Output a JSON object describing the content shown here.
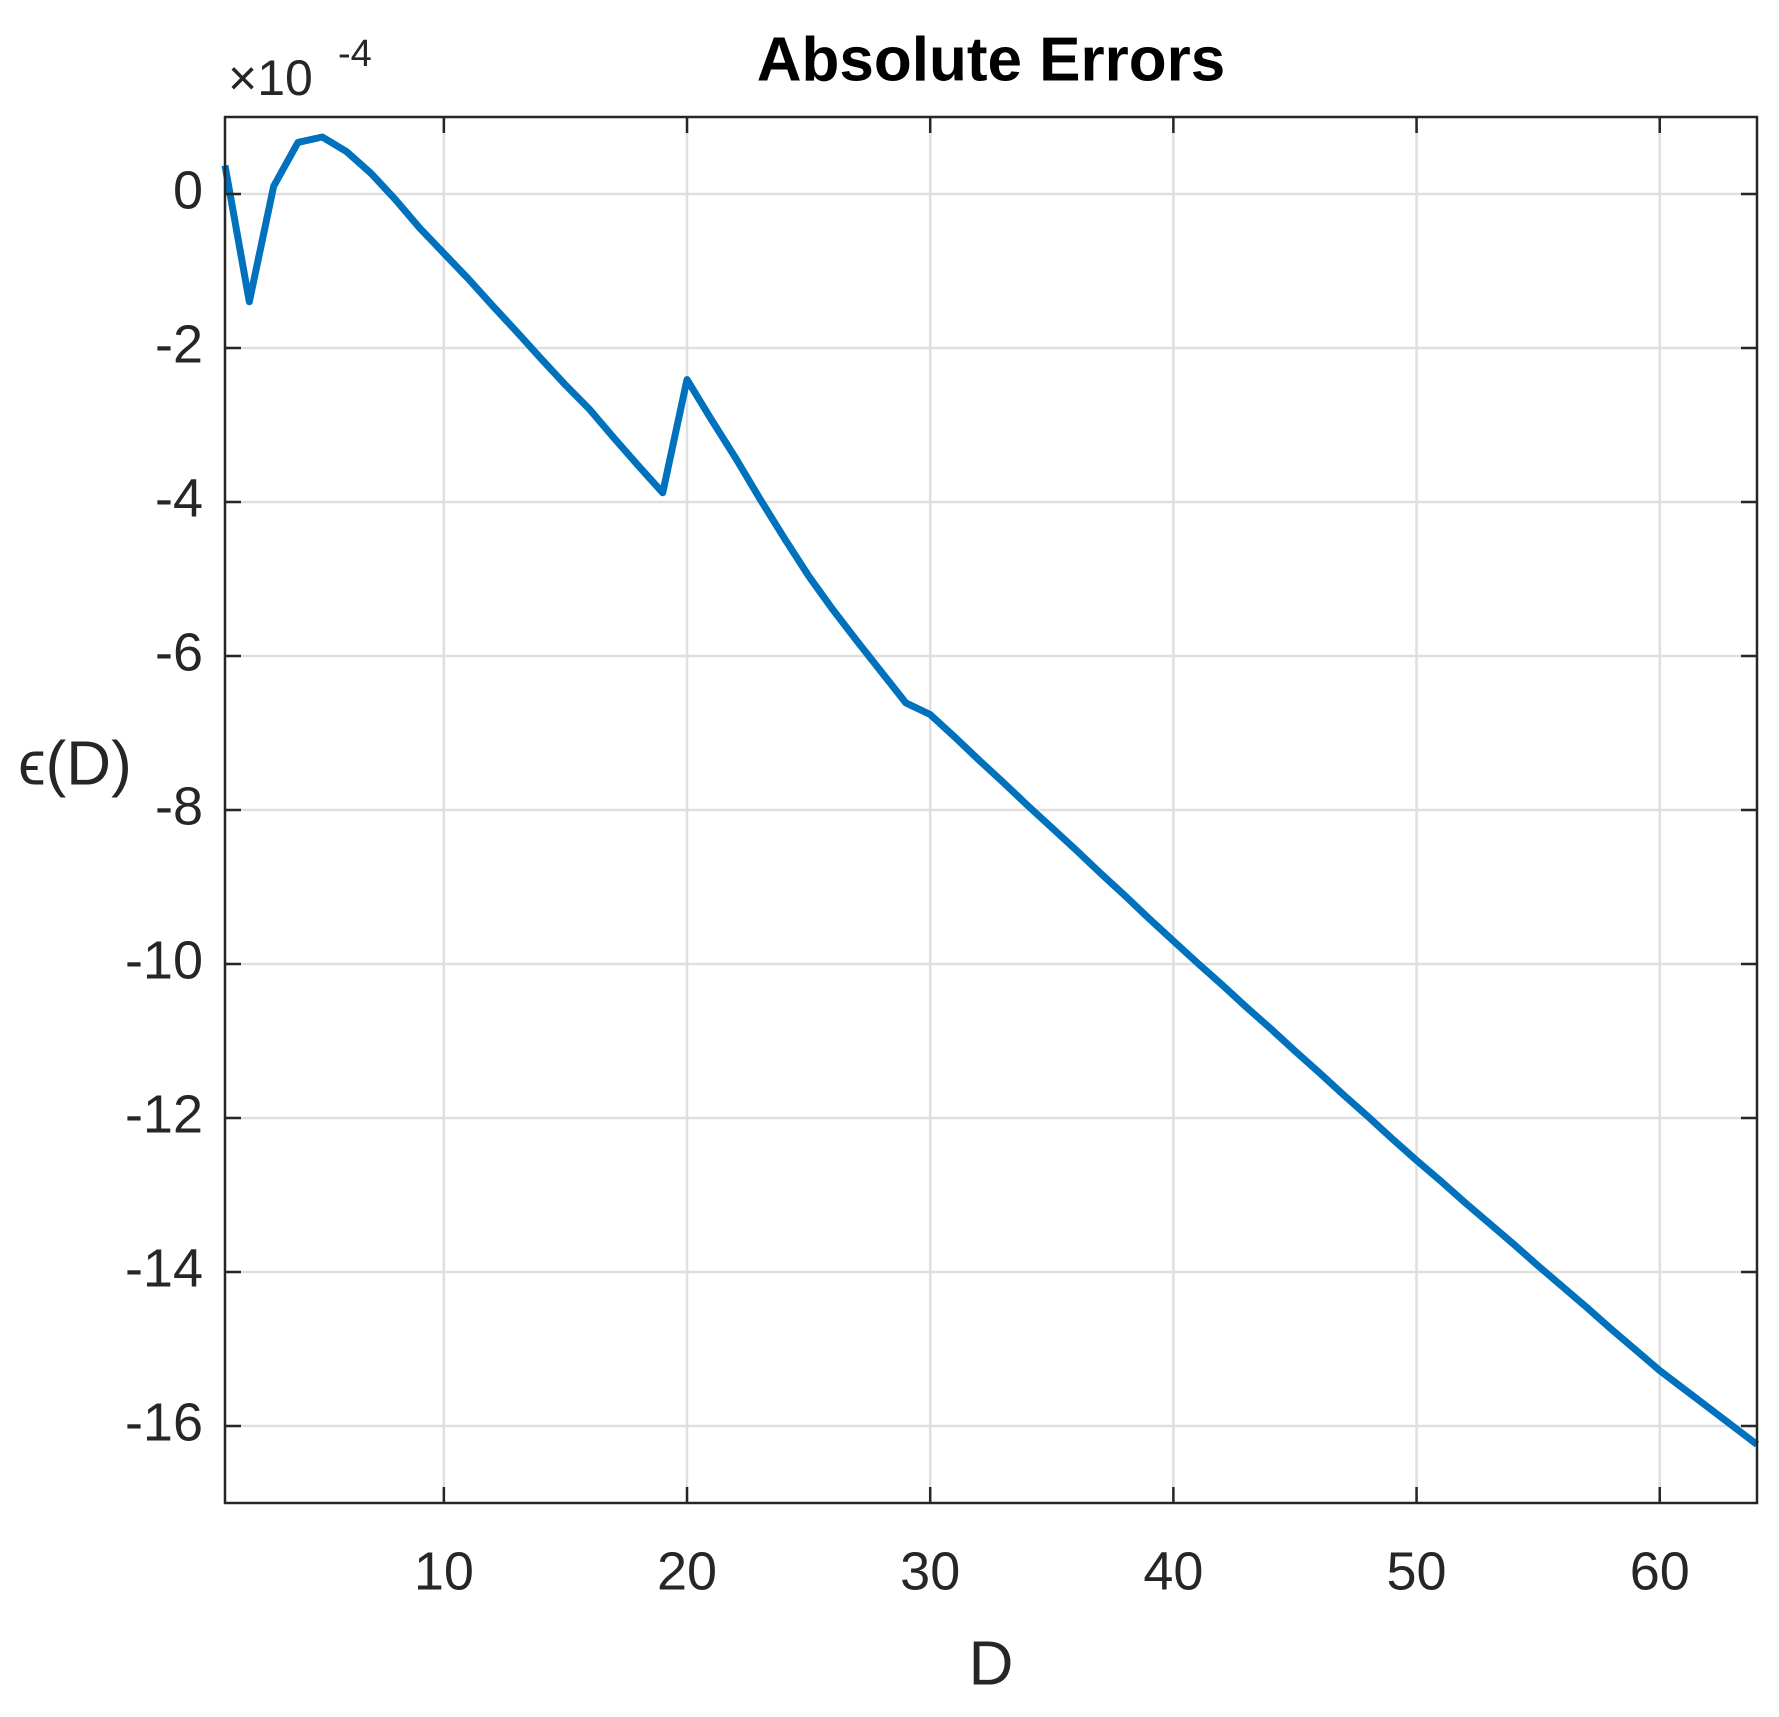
{
  "chart_data": {
    "type": "line",
    "title": "Absolute Errors",
    "x_label": "D",
    "y_label": "ϵ(D)",
    "y_multiplier": "×10",
    "y_exponent": "-4",
    "x": [
      1,
      2,
      3,
      4,
      5,
      6,
      7,
      8,
      9,
      10,
      11,
      12,
      13,
      14,
      15,
      16,
      17,
      18,
      19,
      20,
      21,
      22,
      23,
      24,
      25,
      26,
      27,
      28,
      29,
      30,
      31,
      32,
      33,
      34,
      35,
      36,
      37,
      38,
      39,
      40,
      41,
      42,
      43,
      44,
      45,
      46,
      47,
      48,
      49,
      50,
      51,
      52,
      53,
      54,
      55,
      56,
      57,
      58,
      59,
      60,
      61,
      62,
      63,
      64
    ],
    "series": [
      {
        "name": "ϵ(D)",
        "color": "#0072bd",
        "values": [
          0.37,
          -1.4,
          0.1,
          0.67,
          0.74,
          0.55,
          0.27,
          -0.07,
          -0.44,
          -0.77,
          -1.1,
          -1.45,
          -1.79,
          -2.14,
          -2.48,
          -2.8,
          -3.17,
          -3.53,
          -3.88,
          -2.41,
          -2.93,
          -3.43,
          -3.96,
          -4.47,
          -4.96,
          -5.4,
          -5.81,
          -6.21,
          -6.61,
          -6.76,
          -7.05,
          -7.35,
          -7.64,
          -7.94,
          -8.23,
          -8.52,
          -8.82,
          -9.11,
          -9.41,
          -9.7,
          -9.99,
          -10.27,
          -10.56,
          -10.84,
          -11.13,
          -11.41,
          -11.7,
          -11.98,
          -12.27,
          -12.55,
          -12.82,
          -13.1,
          -13.37,
          -13.64,
          -13.92,
          -14.19,
          -14.46,
          -14.74,
          -15.01,
          -15.28,
          -15.52,
          -15.76,
          -16.0,
          -16.24
        ]
      }
    ],
    "xlim": [
      1,
      64
    ],
    "xticks": [
      10,
      20,
      30,
      40,
      50,
      60
    ],
    "ylim": [
      -17,
      1
    ],
    "yticks": [
      -16,
      -14,
      -12,
      -10,
      -8,
      -6,
      -4,
      -2,
      0
    ],
    "grid": true
  }
}
